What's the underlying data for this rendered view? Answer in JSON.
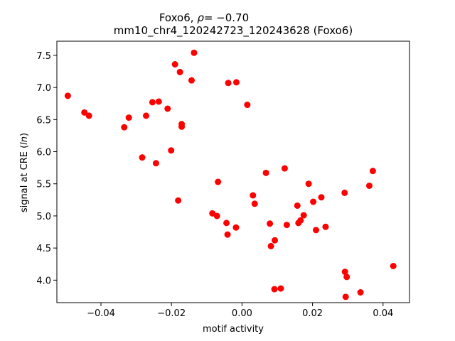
{
  "chart_data": {
    "type": "scatter",
    "title_line1_prefix": "Foxo6, ",
    "title_line1_rho": "ρ",
    "title_line1_suffix": "= −0.70",
    "title_line2": "mm10_chr4_120242723_120243628 (Foxo6)",
    "xlabel": "motif activity",
    "ylabel_prefix": "signal at CRE (",
    "ylabel_italic": "ln",
    "ylabel_suffix": ")",
    "xlim": [
      -0.0525,
      0.0475
    ],
    "ylim": [
      3.65,
      7.72
    ],
    "xticks": [
      {
        "value": -0.04,
        "label": "−0.04"
      },
      {
        "value": -0.02,
        "label": "−0.02"
      },
      {
        "value": 0.0,
        "label": "0.00"
      },
      {
        "value": 0.02,
        "label": "0.02"
      },
      {
        "value": 0.04,
        "label": "0.04"
      }
    ],
    "yticks": [
      {
        "value": 4.0,
        "label": "4.0"
      },
      {
        "value": 4.5,
        "label": "4.5"
      },
      {
        "value": 5.0,
        "label": "5.0"
      },
      {
        "value": 5.5,
        "label": "5.5"
      },
      {
        "value": 6.0,
        "label": "6.0"
      },
      {
        "value": 6.5,
        "label": "6.5"
      },
      {
        "value": 7.0,
        "label": "7.0"
      },
      {
        "value": 7.5,
        "label": "7.5"
      }
    ],
    "grid": false,
    "marker_color": "#ff0000",
    "points": [
      {
        "x": -0.0494,
        "y": 6.87
      },
      {
        "x": -0.0447,
        "y": 6.61
      },
      {
        "x": -0.0434,
        "y": 6.56
      },
      {
        "x": -0.0334,
        "y": 6.38
      },
      {
        "x": -0.0321,
        "y": 6.53
      },
      {
        "x": -0.0283,
        "y": 5.91
      },
      {
        "x": -0.0272,
        "y": 6.56
      },
      {
        "x": -0.0254,
        "y": 6.77
      },
      {
        "x": -0.0236,
        "y": 6.78
      },
      {
        "x": -0.0244,
        "y": 5.82
      },
      {
        "x": -0.0211,
        "y": 6.67
      },
      {
        "x": -0.0201,
        "y": 6.02
      },
      {
        "x": -0.019,
        "y": 7.36
      },
      {
        "x": -0.0176,
        "y": 7.24
      },
      {
        "x": -0.0171,
        "y": 6.43
      },
      {
        "x": -0.0171,
        "y": 6.39
      },
      {
        "x": -0.0181,
        "y": 5.24
      },
      {
        "x": -0.0143,
        "y": 7.11
      },
      {
        "x": -0.0136,
        "y": 7.54
      },
      {
        "x": -0.0084,
        "y": 5.04
      },
      {
        "x": -0.0071,
        "y": 5.0
      },
      {
        "x": -0.0068,
        "y": 5.53
      },
      {
        "x": -0.0044,
        "y": 4.89
      },
      {
        "x": -0.0041,
        "y": 4.71
      },
      {
        "x": -0.0039,
        "y": 7.07
      },
      {
        "x": -0.0016,
        "y": 7.08
      },
      {
        "x": -0.0017,
        "y": 4.82
      },
      {
        "x": 0.0015,
        "y": 6.73
      },
      {
        "x": 0.0031,
        "y": 5.32
      },
      {
        "x": 0.0036,
        "y": 5.19
      },
      {
        "x": 0.0068,
        "y": 5.67
      },
      {
        "x": 0.0079,
        "y": 4.88
      },
      {
        "x": 0.0082,
        "y": 4.53
      },
      {
        "x": 0.0093,
        "y": 4.62
      },
      {
        "x": 0.0092,
        "y": 3.86
      },
      {
        "x": 0.011,
        "y": 3.87
      },
      {
        "x": 0.0121,
        "y": 5.74
      },
      {
        "x": 0.0127,
        "y": 4.86
      },
      {
        "x": 0.0157,
        "y": 5.16
      },
      {
        "x": 0.016,
        "y": 4.89
      },
      {
        "x": 0.0166,
        "y": 4.93
      },
      {
        "x": 0.0175,
        "y": 5.01
      },
      {
        "x": 0.0189,
        "y": 5.5
      },
      {
        "x": 0.0202,
        "y": 5.22
      },
      {
        "x": 0.021,
        "y": 4.78
      },
      {
        "x": 0.0225,
        "y": 5.29
      },
      {
        "x": 0.0237,
        "y": 4.83
      },
      {
        "x": 0.0291,
        "y": 5.36
      },
      {
        "x": 0.0292,
        "y": 4.13
      },
      {
        "x": 0.0297,
        "y": 4.05
      },
      {
        "x": 0.0294,
        "y": 3.74
      },
      {
        "x": 0.0336,
        "y": 3.81
      },
      {
        "x": 0.0361,
        "y": 5.47
      },
      {
        "x": 0.0371,
        "y": 5.7
      },
      {
        "x": 0.0429,
        "y": 4.22
      }
    ]
  }
}
